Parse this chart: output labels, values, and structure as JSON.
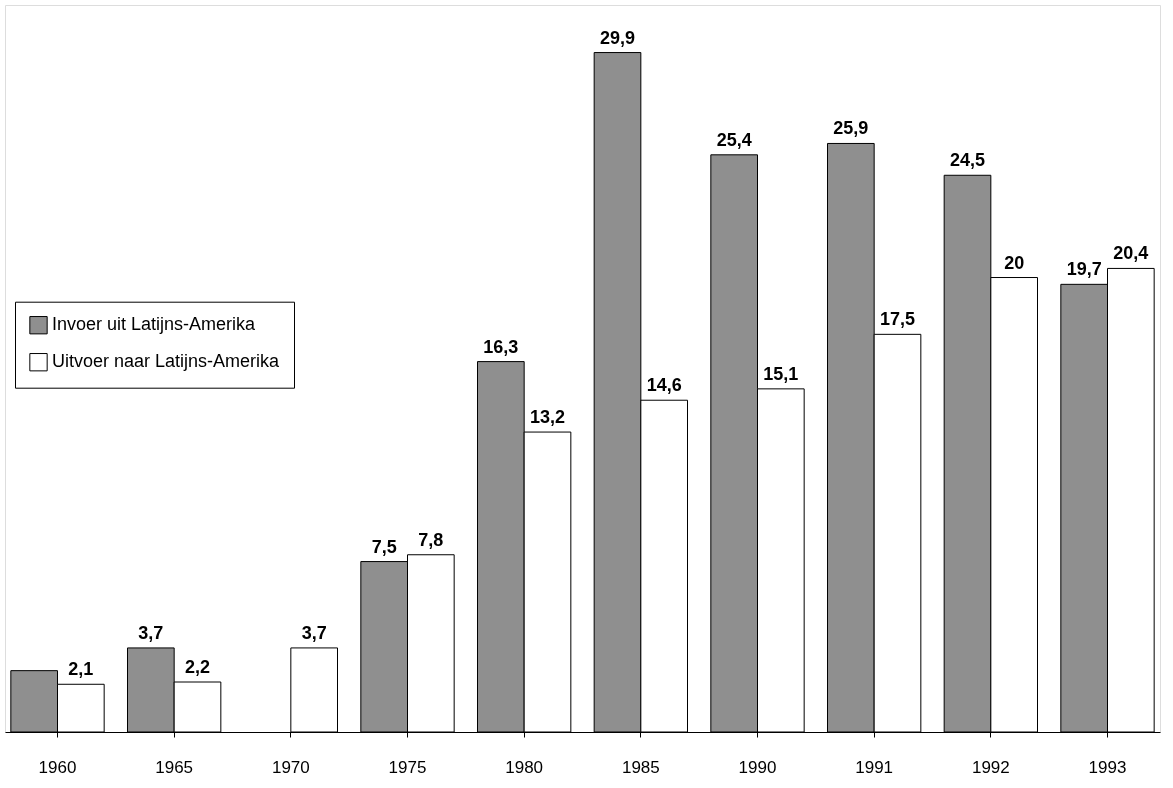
{
  "chart_data": {
    "type": "bar",
    "categories": [
      "1960",
      "1965",
      "1970",
      "1975",
      "1980",
      "1985",
      "1990",
      "1991",
      "1992",
      "1993"
    ],
    "series": [
      {
        "name": "Invoer uit Latijns-Amerika",
        "color": "#8f8f8f",
        "values": [
          2.7,
          3.7,
          null,
          7.5,
          16.3,
          29.9,
          25.4,
          25.9,
          24.5,
          19.7
        ],
        "value_labels": [
          null,
          "3,7",
          null,
          "7,5",
          "16,3",
          "29,9",
          "25,4",
          "25,9",
          "24,5",
          "19,7"
        ]
      },
      {
        "name": "Uitvoer naar Latijns-Amerika",
        "color": "#ffffff",
        "values": [
          2.1,
          2.2,
          3.7,
          7.8,
          13.2,
          14.6,
          15.1,
          17.5,
          20,
          20.4
        ],
        "value_labels": [
          "2,1",
          "2,2",
          "3,7",
          "7,8",
          "13,2",
          "14,6",
          "15,1",
          "17,5",
          "20",
          "20,4"
        ]
      }
    ],
    "legend": "left"
  }
}
